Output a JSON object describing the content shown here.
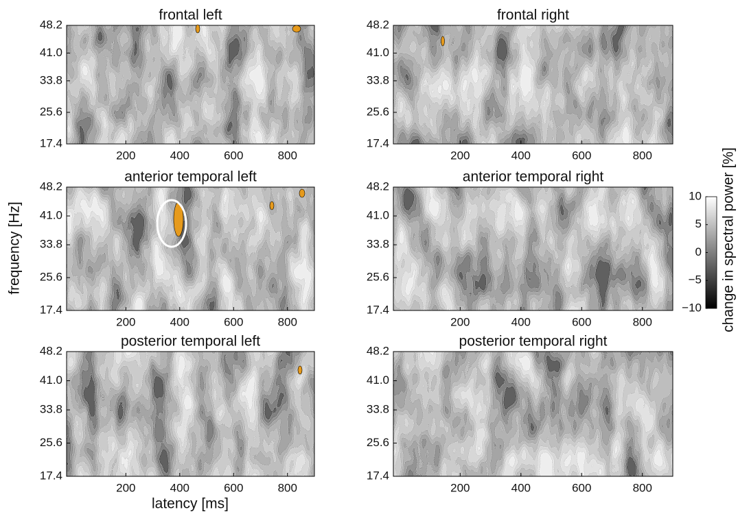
{
  "chart_data": [
    {
      "type": "contour",
      "title": "frontal left",
      "xlim": [
        -20,
        900
      ],
      "ylim": [
        17.4,
        48.2
      ],
      "xticks": [
        200,
        400,
        600,
        800
      ],
      "yticks": [
        17.4,
        25.6,
        33.8,
        {
          "value": 41,
          "label": "41.0"
        },
        48.2
      ]
    },
    {
      "type": "contour",
      "title": "frontal right",
      "xlim": [
        -20,
        900
      ],
      "ylim": [
        17.4,
        48.2
      ],
      "xticks": [
        200,
        400,
        600,
        800
      ],
      "yticks": [
        17.4,
        25.6,
        33.8,
        {
          "value": 41,
          "label": "41.0"
        },
        48.2
      ]
    },
    {
      "type": "contour",
      "title": "anterior temporal left",
      "xlim": [
        -20,
        900
      ],
      "ylim": [
        17.4,
        48.2
      ],
      "xticks": [
        200,
        400,
        600,
        800
      ],
      "yticks": [
        17.4,
        25.6,
        33.8,
        {
          "value": 41,
          "label": "41.0"
        },
        48.2
      ]
    },
    {
      "type": "contour",
      "title": "anterior temporal right",
      "xlim": [
        -20,
        900
      ],
      "ylim": [
        17.4,
        48.2
      ],
      "xticks": [
        200,
        400,
        600,
        800
      ],
      "yticks": [
        17.4,
        25.6,
        33.8,
        {
          "value": 41,
          "label": "41.0"
        },
        48.2
      ]
    },
    {
      "type": "contour",
      "title": "posterior temporal left",
      "xlim": [
        -20,
        900
      ],
      "ylim": [
        17.4,
        48.2
      ],
      "xticks": [
        200,
        400,
        600,
        800
      ],
      "yticks": [
        17.4,
        25.6,
        33.8,
        {
          "value": 41,
          "label": "41.0"
        },
        48.2
      ]
    },
    {
      "type": "contour",
      "title": "posterior temporal right",
      "xlim": [
        -20,
        900
      ],
      "ylim": [
        17.4,
        48.2
      ],
      "xticks": [
        200,
        400,
        600,
        800
      ],
      "yticks": [
        17.4,
        25.6,
        33.8,
        {
          "value": 41,
          "label": "41.0"
        },
        48.2
      ]
    },
    {
      "type": "colorbar",
      "label": "change in spectral power [%]",
      "ylim": [
        -10,
        10
      ],
      "yticks": [
        10,
        5,
        0,
        {
          "value": -5,
          "label": "−5"
        },
        {
          "value": -10,
          "label": "−10"
        }
      ]
    }
  ],
  "xlabel": "latency [ms]",
  "ylabel": "frequency [Hz]"
}
